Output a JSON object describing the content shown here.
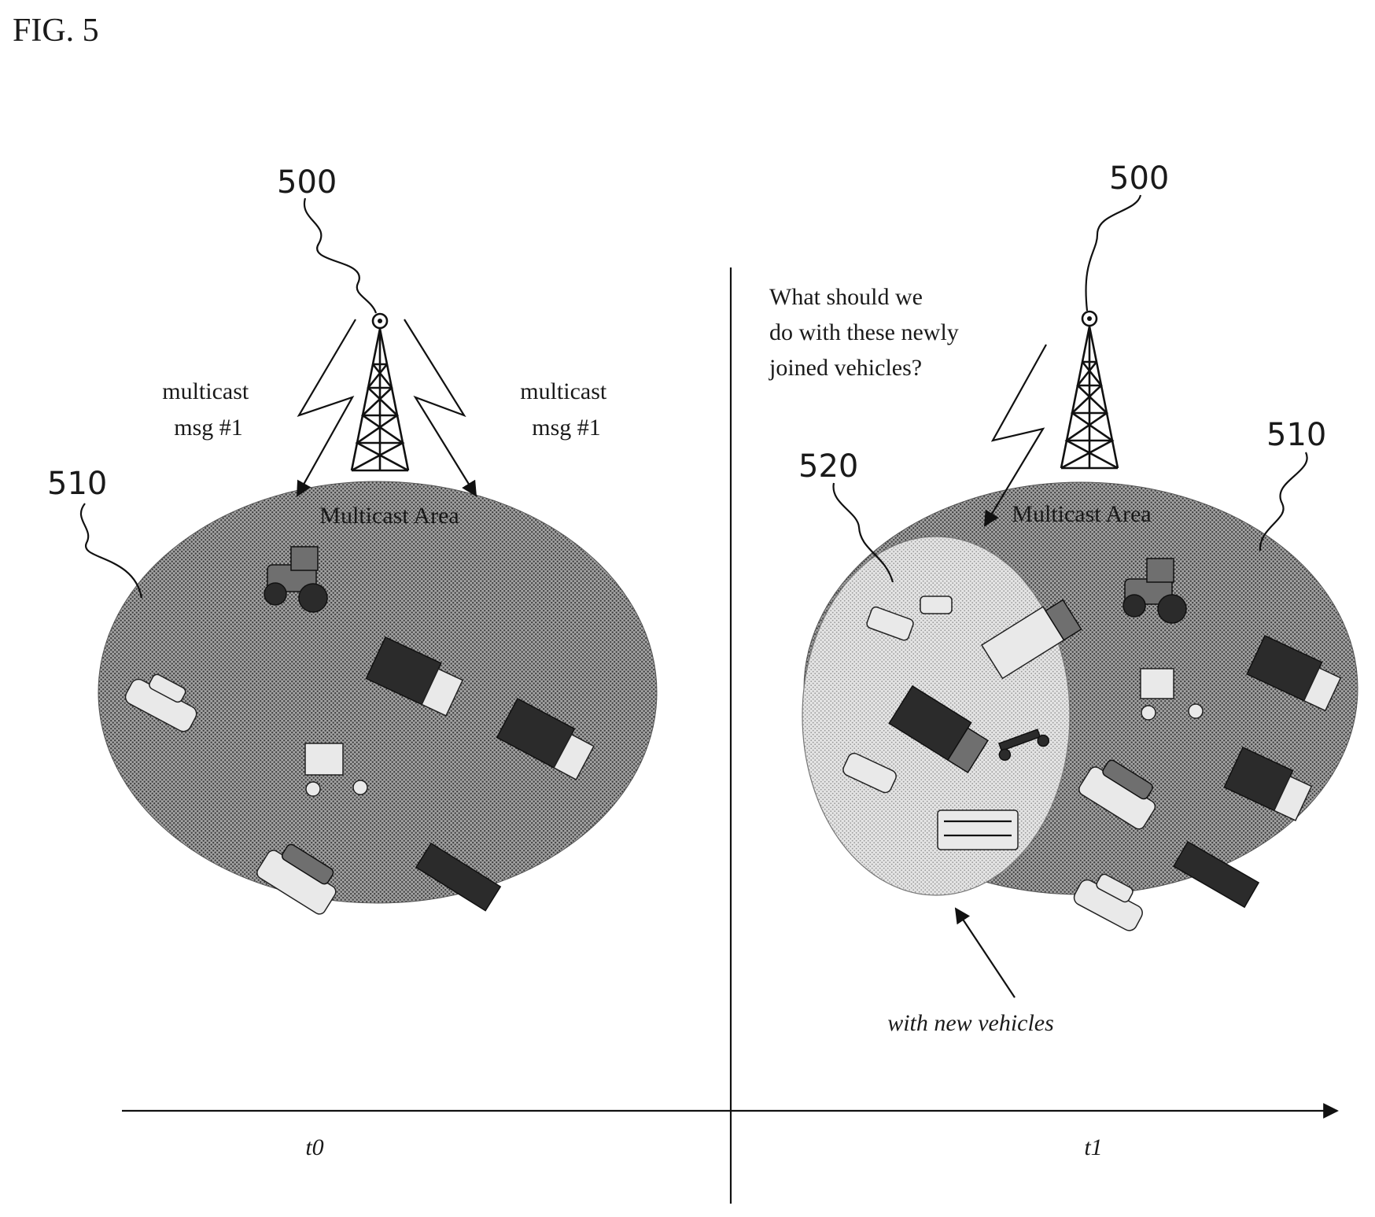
{
  "figure": {
    "label": "FIG. 5"
  },
  "left_panel": {
    "tower_ref": "500",
    "area_ref": "510",
    "area_label": "Multicast Area",
    "msg_left": [
      "multicast",
      "msg #1"
    ],
    "msg_right": [
      "multicast",
      "msg #1"
    ],
    "time_label": "t0"
  },
  "right_panel": {
    "tower_ref": "500",
    "area_ref": "510",
    "sub_area_ref": "520",
    "area_label": "Multicast Area",
    "question": [
      "What should we",
      "do with these newly",
      "joined vehicles?"
    ],
    "sub_area_caption": "with new vehicles",
    "time_label": "t1"
  },
  "colors": {
    "area_fill": "#8c8c8c",
    "sub_area_fill": "#d6d6d6",
    "line": "#111111"
  }
}
